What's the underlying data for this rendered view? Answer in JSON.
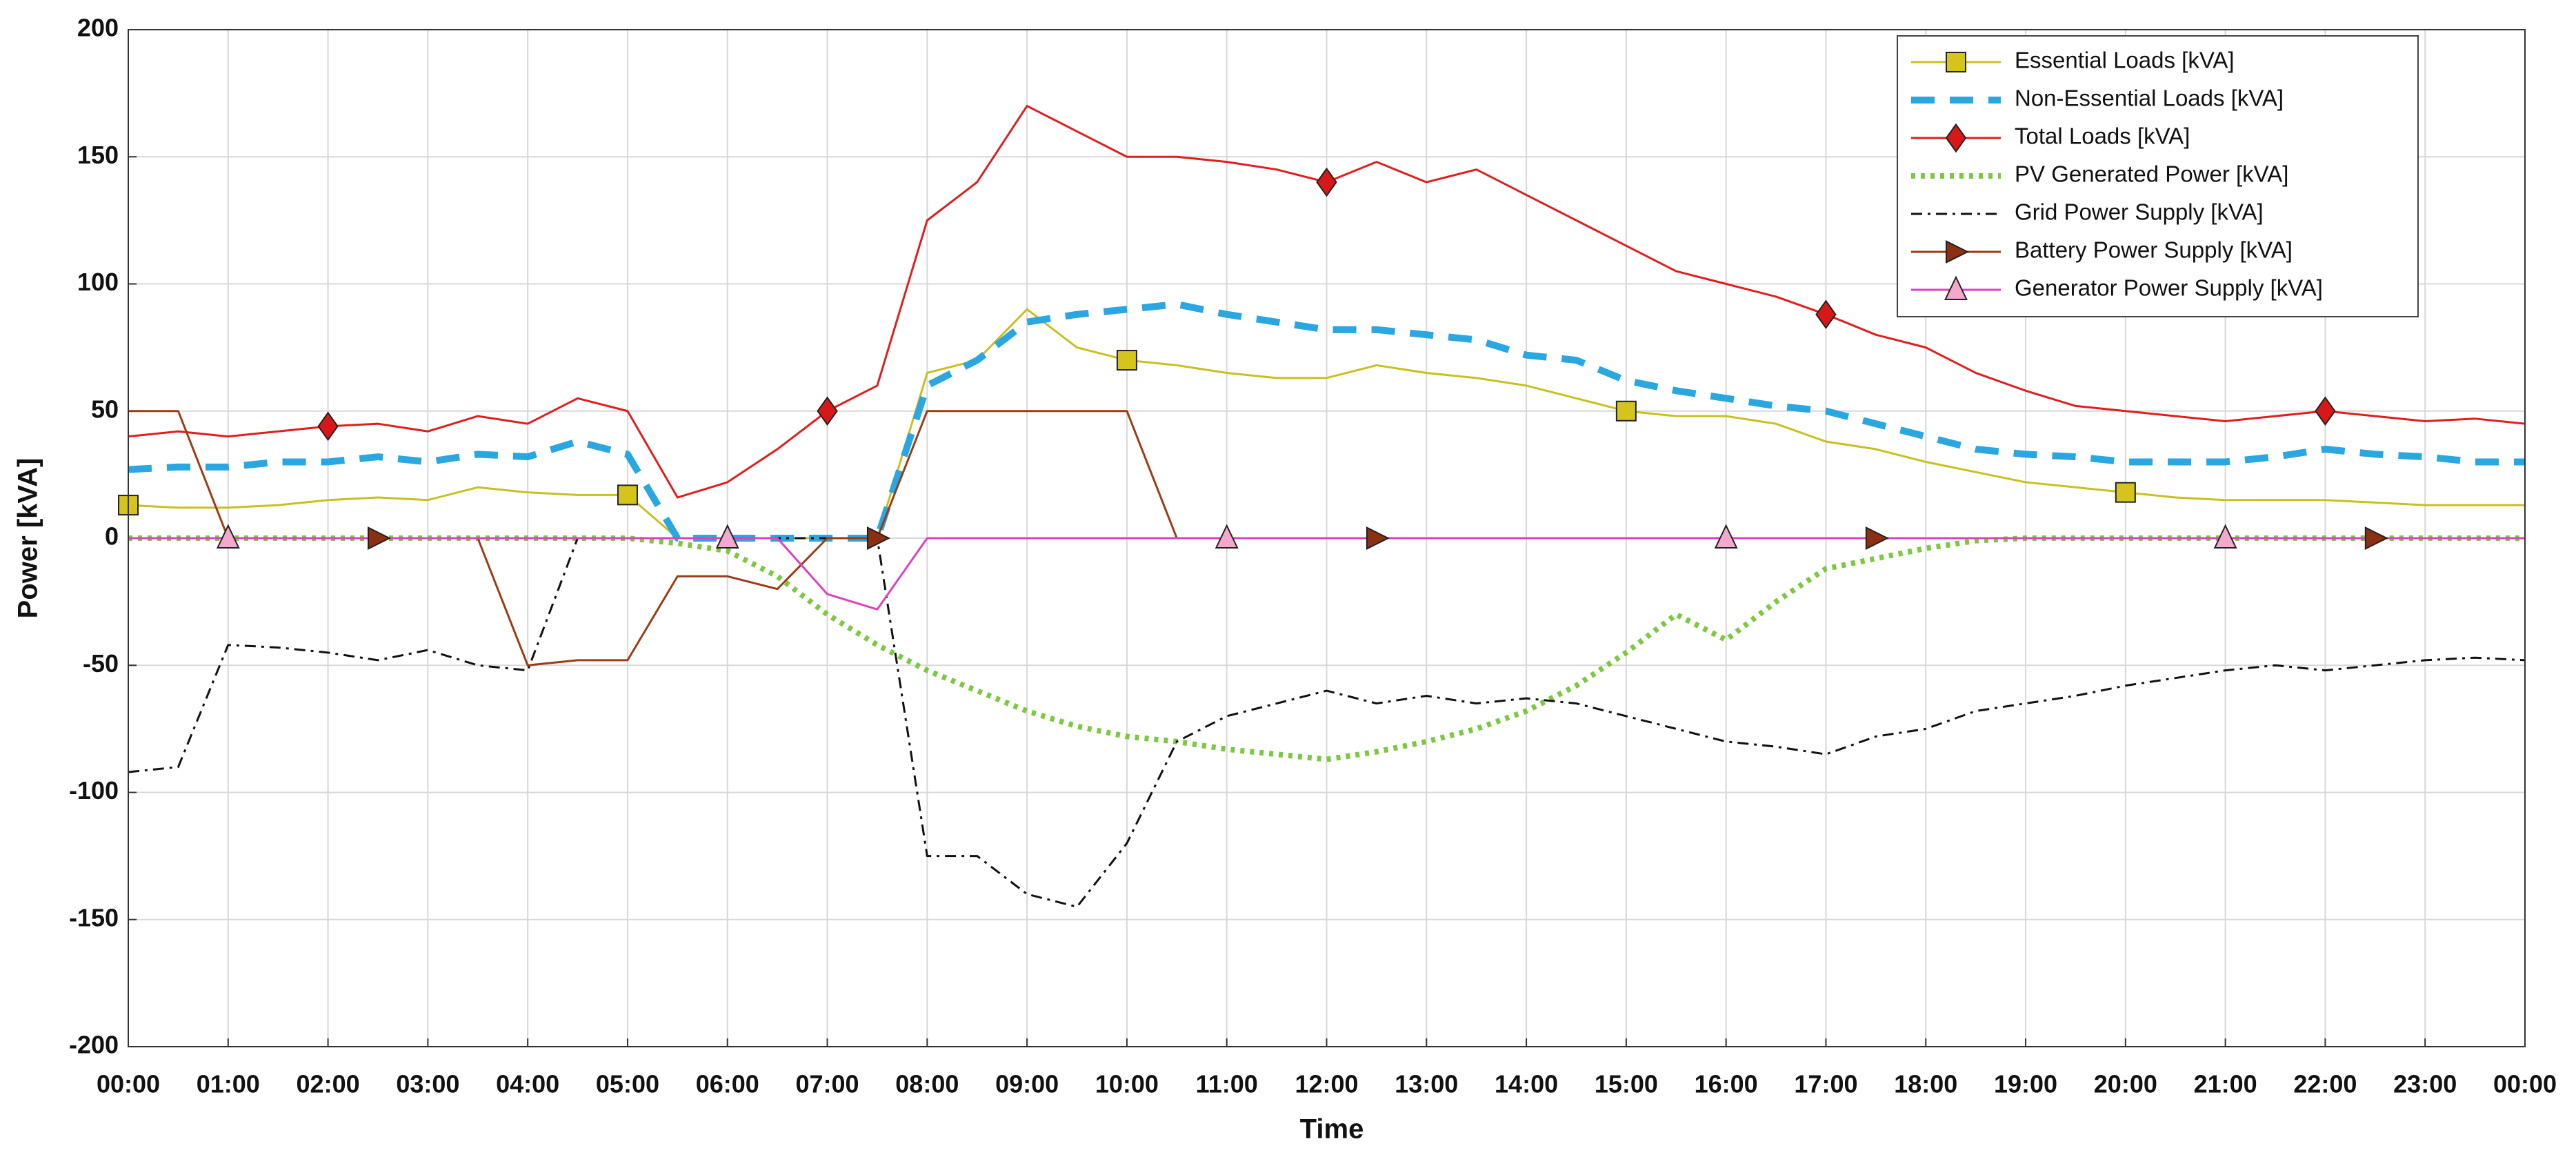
{
  "chart_data": {
    "type": "line",
    "xlabel": "Time",
    "ylabel": "Power [kVA]",
    "xlim": [
      0,
      24
    ],
    "ylim": [
      -200,
      200
    ],
    "xticks": [
      {
        "value": 0,
        "label": "00:00"
      },
      {
        "value": 1,
        "label": "01:00"
      },
      {
        "value": 2,
        "label": "02:00"
      },
      {
        "value": 3,
        "label": "03:00"
      },
      {
        "value": 4,
        "label": "04:00"
      },
      {
        "value": 5,
        "label": "05:00"
      },
      {
        "value": 6,
        "label": "06:00"
      },
      {
        "value": 7,
        "label": "07:00"
      },
      {
        "value": 8,
        "label": "08:00"
      },
      {
        "value": 9,
        "label": "09:00"
      },
      {
        "value": 10,
        "label": "10:00"
      },
      {
        "value": 11,
        "label": "11:00"
      },
      {
        "value": 12,
        "label": "12:00"
      },
      {
        "value": 13,
        "label": "13:00"
      },
      {
        "value": 14,
        "label": "14:00"
      },
      {
        "value": 15,
        "label": "15:00"
      },
      {
        "value": 16,
        "label": "16:00"
      },
      {
        "value": 17,
        "label": "17:00"
      },
      {
        "value": 18,
        "label": "18:00"
      },
      {
        "value": 19,
        "label": "19:00"
      },
      {
        "value": 20,
        "label": "20:00"
      },
      {
        "value": 21,
        "label": "21:00"
      },
      {
        "value": 22,
        "label": "22:00"
      },
      {
        "value": 23,
        "label": "23:00"
      },
      {
        "value": 24,
        "label": "00:00"
      }
    ],
    "yticks": [
      -200,
      -150,
      -100,
      -50,
      0,
      50,
      100,
      150,
      200
    ],
    "grid": true,
    "legend": "upper right",
    "x": [
      0,
      0.5,
      1,
      1.5,
      2,
      2.5,
      3,
      3.5,
      4,
      4.5,
      5,
      5.5,
      6,
      6.5,
      7,
      7.5,
      8,
      8.5,
      9,
      9.5,
      10,
      10.5,
      11,
      11.5,
      12,
      12.5,
      13,
      13.5,
      14,
      14.5,
      15,
      15.5,
      16,
      16.5,
      17,
      17.5,
      18,
      18.5,
      19,
      19.5,
      20,
      20.5,
      21,
      21.5,
      22,
      22.5,
      23,
      23.5,
      24
    ],
    "series": [
      {
        "name": "Essential Loads [kVA]",
        "color": "#c8c020",
        "style": "solid",
        "marker": "square",
        "marker_color": "#d4c41c",
        "values": [
          13,
          12,
          12,
          13,
          15,
          16,
          15,
          20,
          18,
          17,
          17,
          0,
          0,
          0,
          0,
          0,
          65,
          70,
          90,
          75,
          70,
          68,
          65,
          63,
          63,
          68,
          65,
          63,
          60,
          55,
          50,
          48,
          48,
          45,
          38,
          35,
          30,
          26,
          22,
          20,
          18,
          16,
          15,
          15,
          15,
          14,
          13,
          13,
          13
        ]
      },
      {
        "name": "Non-Essential Loads [kVA]",
        "color": "#2aa6e0",
        "style": "dashed",
        "marker": "none",
        "values": [
          27,
          28,
          28,
          30,
          30,
          32,
          30,
          33,
          32,
          38,
          33,
          0,
          0,
          0,
          0,
          0,
          60,
          70,
          85,
          88,
          90,
          92,
          88,
          85,
          82,
          82,
          80,
          78,
          72,
          70,
          62,
          58,
          55,
          52,
          50,
          45,
          40,
          35,
          33,
          32,
          30,
          30,
          30,
          32,
          35,
          33,
          32,
          30,
          30
        ]
      },
      {
        "name": "Total Loads [kVA]",
        "color": "#e01e1e",
        "style": "solid",
        "marker": "diamond",
        "marker_color": "#d81818",
        "values": [
          40,
          42,
          40,
          42,
          44,
          45,
          42,
          48,
          45,
          55,
          50,
          16,
          22,
          35,
          50,
          60,
          125,
          140,
          170,
          160,
          150,
          150,
          148,
          145,
          140,
          148,
          140,
          145,
          135,
          125,
          115,
          105,
          100,
          95,
          88,
          80,
          75,
          65,
          58,
          52,
          50,
          48,
          46,
          48,
          50,
          48,
          46,
          47,
          45
        ]
      },
      {
        "name": "PV Generated Power [kVA]",
        "color": "#7cc940",
        "style": "dotted",
        "marker": "none",
        "values": [
          0,
          0,
          0,
          0,
          0,
          0,
          0,
          0,
          0,
          0,
          0,
          -2,
          -5,
          -15,
          -30,
          -42,
          -52,
          -60,
          -68,
          -74,
          -78,
          -80,
          -83,
          -85,
          -87,
          -84,
          -80,
          -75,
          -68,
          -58,
          -45,
          -30,
          -40,
          -25,
          -12,
          -8,
          -4,
          -1,
          0,
          0,
          0,
          0,
          0,
          0,
          0,
          0,
          0,
          0,
          0
        ]
      },
      {
        "name": "Grid Power Supply [kVA]",
        "color": "#111111",
        "style": "dashdot",
        "marker": "none",
        "values": [
          -92,
          -90,
          -42,
          -43,
          -45,
          -48,
          -44,
          -50,
          -52,
          0,
          0,
          0,
          0,
          0,
          0,
          0,
          -125,
          -125,
          -140,
          -145,
          -120,
          -80,
          -70,
          -65,
          -60,
          -65,
          -62,
          -65,
          -63,
          -65,
          -70,
          -75,
          -80,
          -82,
          -85,
          -78,
          -75,
          -68,
          -65,
          -62,
          -58,
          -55,
          -52,
          -50,
          -52,
          -50,
          -48,
          -47,
          -48
        ]
      },
      {
        "name": "Battery Power Supply [kVA]",
        "color": "#9b3c14",
        "style": "solid",
        "marker": "triangle-right",
        "marker_color": "#8b3010",
        "values": [
          50,
          50,
          0,
          0,
          0,
          0,
          0,
          0,
          -50,
          -48,
          -48,
          -15,
          -15,
          -20,
          0,
          0,
          50,
          50,
          50,
          50,
          50,
          0,
          0,
          0,
          0,
          0,
          0,
          0,
          0,
          0,
          0,
          0,
          0,
          0,
          0,
          0,
          0,
          0,
          0,
          0,
          0,
          0,
          0,
          0,
          0,
          0,
          0,
          0,
          0
        ]
      },
      {
        "name": "Generator Power Supply [kVA]",
        "color": "#e040c0",
        "style": "solid",
        "marker": "triangle-up",
        "marker_color": "#f4a8cc",
        "values": [
          0,
          0,
          0,
          0,
          0,
          0,
          0,
          0,
          0,
          0,
          0,
          0,
          0,
          0,
          -22,
          -28,
          0,
          0,
          0,
          0,
          0,
          0,
          0,
          0,
          0,
          0,
          0,
          0,
          0,
          0,
          0,
          0,
          0,
          0,
          0,
          0,
          0,
          0,
          0,
          0,
          0,
          0,
          0,
          0,
          0,
          0,
          0,
          0,
          0
        ]
      }
    ]
  }
}
